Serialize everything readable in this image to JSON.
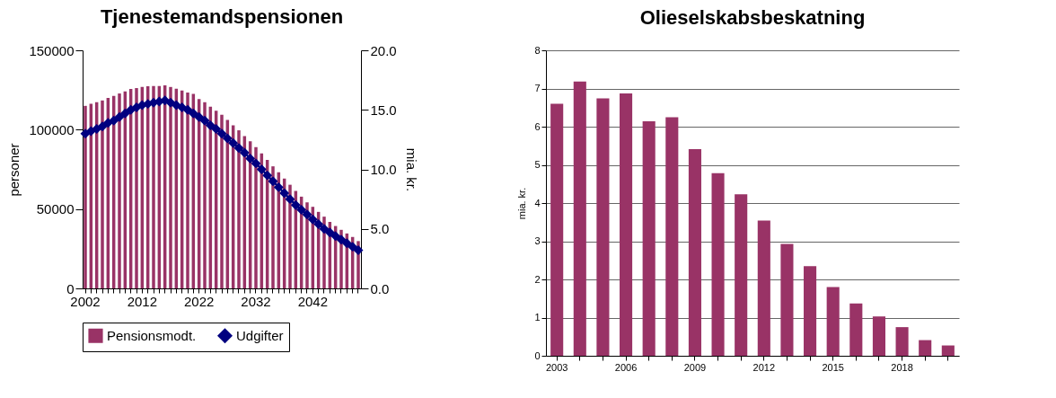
{
  "chart_data": [
    {
      "type": "bar",
      "title": "Tjenestemandspensionen",
      "ylabel": "personer",
      "y2label": "mia. kr.",
      "categories": [
        "2002",
        null,
        null,
        null,
        null,
        null,
        null,
        null,
        null,
        null,
        "2012",
        null,
        null,
        null,
        null,
        null,
        null,
        null,
        null,
        null,
        "2022",
        null,
        null,
        null,
        null,
        null,
        null,
        null,
        null,
        null,
        "2032",
        null,
        null,
        null,
        null,
        null,
        null,
        null,
        null,
        null,
        "2042",
        null,
        null,
        null,
        null,
        null,
        null,
        null,
        null
      ],
      "series": [
        {
          "name": "Pensionsmodt.",
          "color": "#993366",
          "values": [
            115000,
            116300,
            117300,
            118400,
            120000,
            121300,
            122800,
            124100,
            125600,
            126200,
            126900,
            127300,
            127500,
            127500,
            127900,
            126900,
            125800,
            124700,
            123400,
            122500,
            119300,
            117300,
            114500,
            112000,
            109400,
            106100,
            102700,
            99600,
            96000,
            92700,
            89000,
            85100,
            81000,
            76900,
            73100,
            69200,
            65300,
            61400,
            57800,
            54200,
            51400,
            48200,
            45200,
            41900,
            39300,
            36900,
            34600,
            32400,
            29800
          ]
        },
        {
          "name": "Udgifter",
          "type": "line",
          "axis": "y2",
          "marker": "diamond",
          "color": "#000080",
          "values": [
            13.0,
            13.2,
            13.4,
            13.6,
            13.9,
            14.1,
            14.4,
            14.7,
            15.0,
            15.2,
            15.4,
            15.5,
            15.6,
            15.7,
            15.8,
            15.6,
            15.4,
            15.2,
            15.0,
            14.7,
            14.4,
            14.1,
            13.7,
            13.4,
            13.0,
            12.6,
            12.2,
            11.8,
            11.4,
            10.9,
            10.5,
            10.0,
            9.5,
            9.0,
            8.5,
            8.0,
            7.5,
            7.0,
            6.6,
            6.2,
            5.8,
            5.4,
            5.0,
            4.7,
            4.4,
            4.1,
            3.8,
            3.5,
            3.2
          ]
        }
      ],
      "ylim": [
        0,
        150000
      ],
      "yticks": [
        0,
        50000,
        100000,
        150000
      ],
      "y2lim": [
        0,
        20
      ],
      "y2ticks": [
        {
          "value": 0,
          "label": "0.0"
        },
        {
          "value": 5,
          "label": "5.0"
        },
        {
          "value": 10,
          "label": "10.0"
        },
        {
          "value": 15,
          "label": "15.0"
        },
        {
          "value": 20,
          "label": "20.0"
        }
      ],
      "legend": "bottom"
    },
    {
      "type": "bar",
      "title": "Olieselskabsbeskatning",
      "ylabel": "mia. kr.",
      "categories": [
        "2003",
        null,
        null,
        "2006",
        null,
        null,
        "2009",
        null,
        null,
        "2012",
        null,
        null,
        "2015",
        null,
        null,
        "2018",
        null,
        null
      ],
      "series": [
        {
          "color": "#993366",
          "values": [
            6.6,
            7.18,
            6.74,
            6.87,
            6.14,
            6.25,
            5.41,
            4.78,
            4.23,
            3.54,
            2.93,
            2.35,
            1.8,
            1.37,
            1.03,
            0.75,
            0.41,
            0.27
          ]
        }
      ],
      "ylim": [
        0,
        8
      ],
      "yticks": [
        0,
        1,
        2,
        3,
        4,
        5,
        6,
        7,
        8
      ],
      "grid": "y"
    }
  ]
}
